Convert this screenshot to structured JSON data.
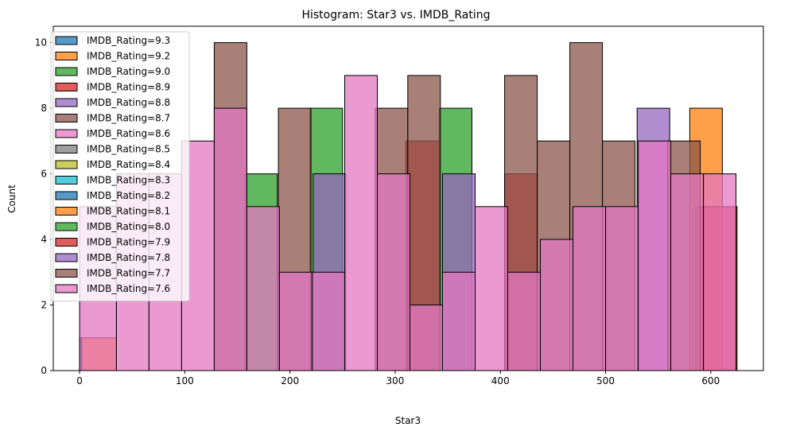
{
  "chart_data": {
    "type": "bar",
    "title": "Histogram: Star3 vs. IMDB_Rating",
    "xlabel": "Star3",
    "ylabel": "Count",
    "xlim": [
      -25,
      650
    ],
    "ylim": [
      0,
      10.5
    ],
    "xticks": [
      0,
      100,
      200,
      300,
      400,
      500,
      600
    ],
    "yticks": [
      0,
      2,
      4,
      6,
      8,
      10
    ],
    "grid": false,
    "legend_position": "top-left",
    "series": [
      {
        "name": "IMDB_Rating=9.3",
        "color": "#1f77b4",
        "bins": [
          [
            0,
            2,
            1
          ]
        ]
      },
      {
        "name": "IMDB_Rating=9.2",
        "color": "#ff7f0e",
        "bins": [
          [
            2,
            35,
            1
          ],
          [
            580,
            611,
            8
          ]
        ]
      },
      {
        "name": "IMDB_Rating=9.0",
        "color": "#2ca02c",
        "bins": [
          [
            157,
            188,
            6
          ],
          [
            219,
            250,
            8
          ],
          [
            342,
            373,
            8
          ]
        ]
      },
      {
        "name": "IMDB_Rating=8.9",
        "color": "#d62728",
        "bins": [
          [
            310,
            342,
            7
          ],
          [
            404,
            435,
            6
          ],
          [
            585,
            625,
            5
          ]
        ]
      },
      {
        "name": "IMDB_Rating=8.8",
        "color": "#9467bd",
        "bins": [
          [
            222,
            253,
            6
          ],
          [
            345,
            376,
            6
          ],
          [
            530,
            561,
            8
          ]
        ]
      },
      {
        "name": "IMDB_Rating=8.7",
        "color": "#8c564b",
        "bins": [
          [
            128,
            159,
            10
          ],
          [
            189,
            220,
            8
          ],
          [
            281,
            312,
            8
          ],
          [
            312,
            343,
            9
          ],
          [
            404,
            435,
            9
          ],
          [
            435,
            466,
            7
          ],
          [
            466,
            497,
            10
          ],
          [
            497,
            528,
            7
          ],
          [
            559,
            590,
            7
          ]
        ]
      },
      {
        "name": "IMDB_Rating=8.6",
        "color": "#e377c2",
        "bins": [
          [
            0,
            35,
            5
          ],
          [
            35,
            66,
            6
          ],
          [
            66,
            97,
            6
          ],
          [
            97,
            128,
            7
          ],
          [
            128,
            159,
            8
          ],
          [
            159,
            190,
            5
          ],
          [
            190,
            221,
            3
          ],
          [
            221,
            252,
            3
          ],
          [
            252,
            283,
            9
          ],
          [
            283,
            314,
            6
          ],
          [
            314,
            345,
            2
          ],
          [
            345,
            376,
            3
          ],
          [
            376,
            407,
            5
          ],
          [
            407,
            438,
            3
          ],
          [
            438,
            469,
            4
          ],
          [
            469,
            500,
            5
          ],
          [
            500,
            531,
            5
          ],
          [
            531,
            562,
            7
          ],
          [
            562,
            593,
            6
          ],
          [
            593,
            624,
            6
          ]
        ]
      }
    ]
  },
  "legend": {
    "items": [
      {
        "label": "IMDB_Rating=9.3",
        "color": "#1f77b4"
      },
      {
        "label": "IMDB_Rating=9.2",
        "color": "#ff7f0e"
      },
      {
        "label": "IMDB_Rating=9.0",
        "color": "#2ca02c"
      },
      {
        "label": "IMDB_Rating=8.9",
        "color": "#d62728"
      },
      {
        "label": "IMDB_Rating=8.8",
        "color": "#9467bd"
      },
      {
        "label": "IMDB_Rating=8.7",
        "color": "#8c564b"
      },
      {
        "label": "IMDB_Rating=8.6",
        "color": "#e377c2"
      },
      {
        "label": "IMDB_Rating=8.5",
        "color": "#7f7f7f"
      },
      {
        "label": "IMDB_Rating=8.4",
        "color": "#bcbd22"
      },
      {
        "label": "IMDB_Rating=8.3",
        "color": "#17becf"
      },
      {
        "label": "IMDB_Rating=8.2",
        "color": "#1f77b4"
      },
      {
        "label": "IMDB_Rating=8.1",
        "color": "#ff7f0e"
      },
      {
        "label": "IMDB_Rating=8.0",
        "color": "#2ca02c"
      },
      {
        "label": "IMDB_Rating=7.9",
        "color": "#d62728"
      },
      {
        "label": "IMDB_Rating=7.8",
        "color": "#9467bd"
      },
      {
        "label": "IMDB_Rating=7.7",
        "color": "#8c564b"
      },
      {
        "label": "IMDB_Rating=7.6",
        "color": "#e377c2"
      }
    ]
  }
}
